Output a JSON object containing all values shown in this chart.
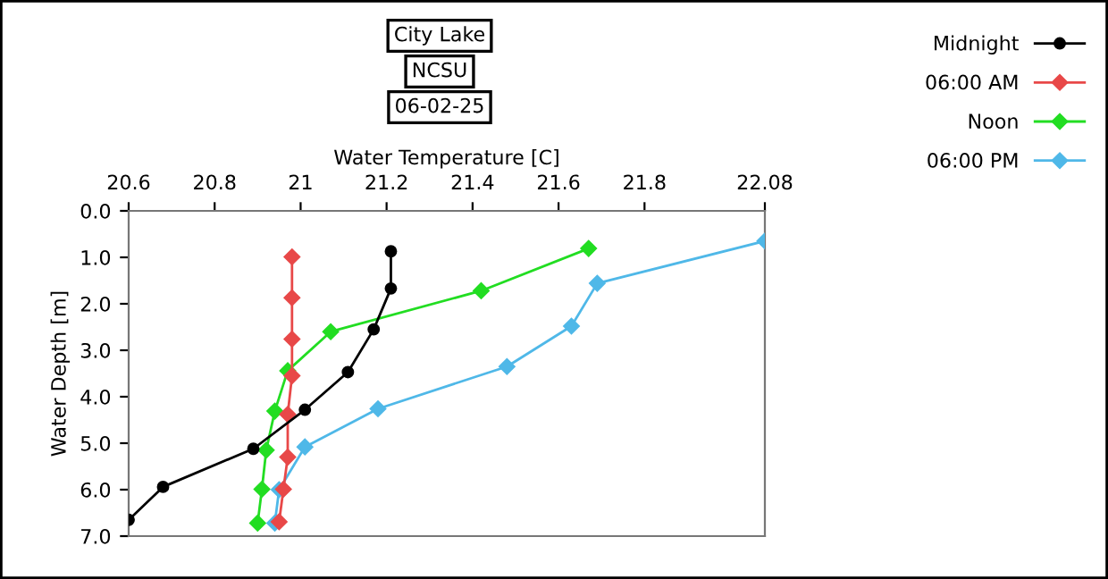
{
  "chart_data": {
    "type": "line",
    "title": "City Lake",
    "subtitle": "NCSU",
    "annotations": [
      "06-02-25"
    ],
    "xlabel": "Water Temperature [C]",
    "ylabel": "Water Depth [m]",
    "xlim": [
      20.6,
      22.08
    ],
    "xticks": [
      20.6,
      20.8,
      21,
      21.2,
      21.4,
      21.6,
      21.8,
      22.08
    ],
    "ylim": [
      7,
      0
    ],
    "yticks": [
      {
        "value": 0,
        "label": "0.0"
      },
      {
        "value": 1,
        "label": "1.0"
      },
      {
        "value": 2,
        "label": "2.0"
      },
      {
        "value": 3,
        "label": "3.0"
      },
      {
        "value": 4,
        "label": "4.0"
      },
      {
        "value": 5,
        "label": "5.0"
      },
      {
        "value": 6,
        "label": "6.0"
      },
      {
        "value": 7,
        "label": "7.0"
      }
    ],
    "legend": "top right",
    "grid": false,
    "line_style": "solid",
    "series": [
      {
        "name": "Midnight",
        "color": "#000000",
        "marker": "circle",
        "x": [
          21.21,
          21.21,
          21.17,
          21.11,
          21.01,
          20.89,
          20.68,
          20.6
        ],
        "values": [
          0.87,
          1.67,
          2.55,
          3.47,
          4.28,
          5.12,
          5.94,
          6.65
        ]
      },
      {
        "name": "06:00 AM",
        "color": "#e84848",
        "marker": "diamond",
        "x": [
          20.98,
          20.98,
          20.98,
          20.98,
          20.97,
          20.97,
          20.96,
          20.95
        ],
        "values": [
          0.99,
          1.87,
          2.76,
          3.55,
          4.38,
          5.3,
          5.99,
          6.69
        ]
      },
      {
        "name": "Noon",
        "color": "#22dd22",
        "marker": "diamond",
        "x": [
          21.67,
          21.42,
          21.07,
          20.97,
          20.94,
          20.92,
          20.91,
          20.9
        ],
        "values": [
          0.81,
          1.72,
          2.6,
          3.44,
          4.31,
          5.15,
          5.99,
          6.72
        ]
      },
      {
        "name": "06:00 PM",
        "color": "#4fb8e8",
        "marker": "diamond",
        "x": [
          22.08,
          21.69,
          21.63,
          21.48,
          21.18,
          21.01,
          20.95,
          20.94
        ],
        "values": [
          0.65,
          1.56,
          2.48,
          3.35,
          4.26,
          5.08,
          6.0,
          6.72
        ]
      }
    ]
  }
}
